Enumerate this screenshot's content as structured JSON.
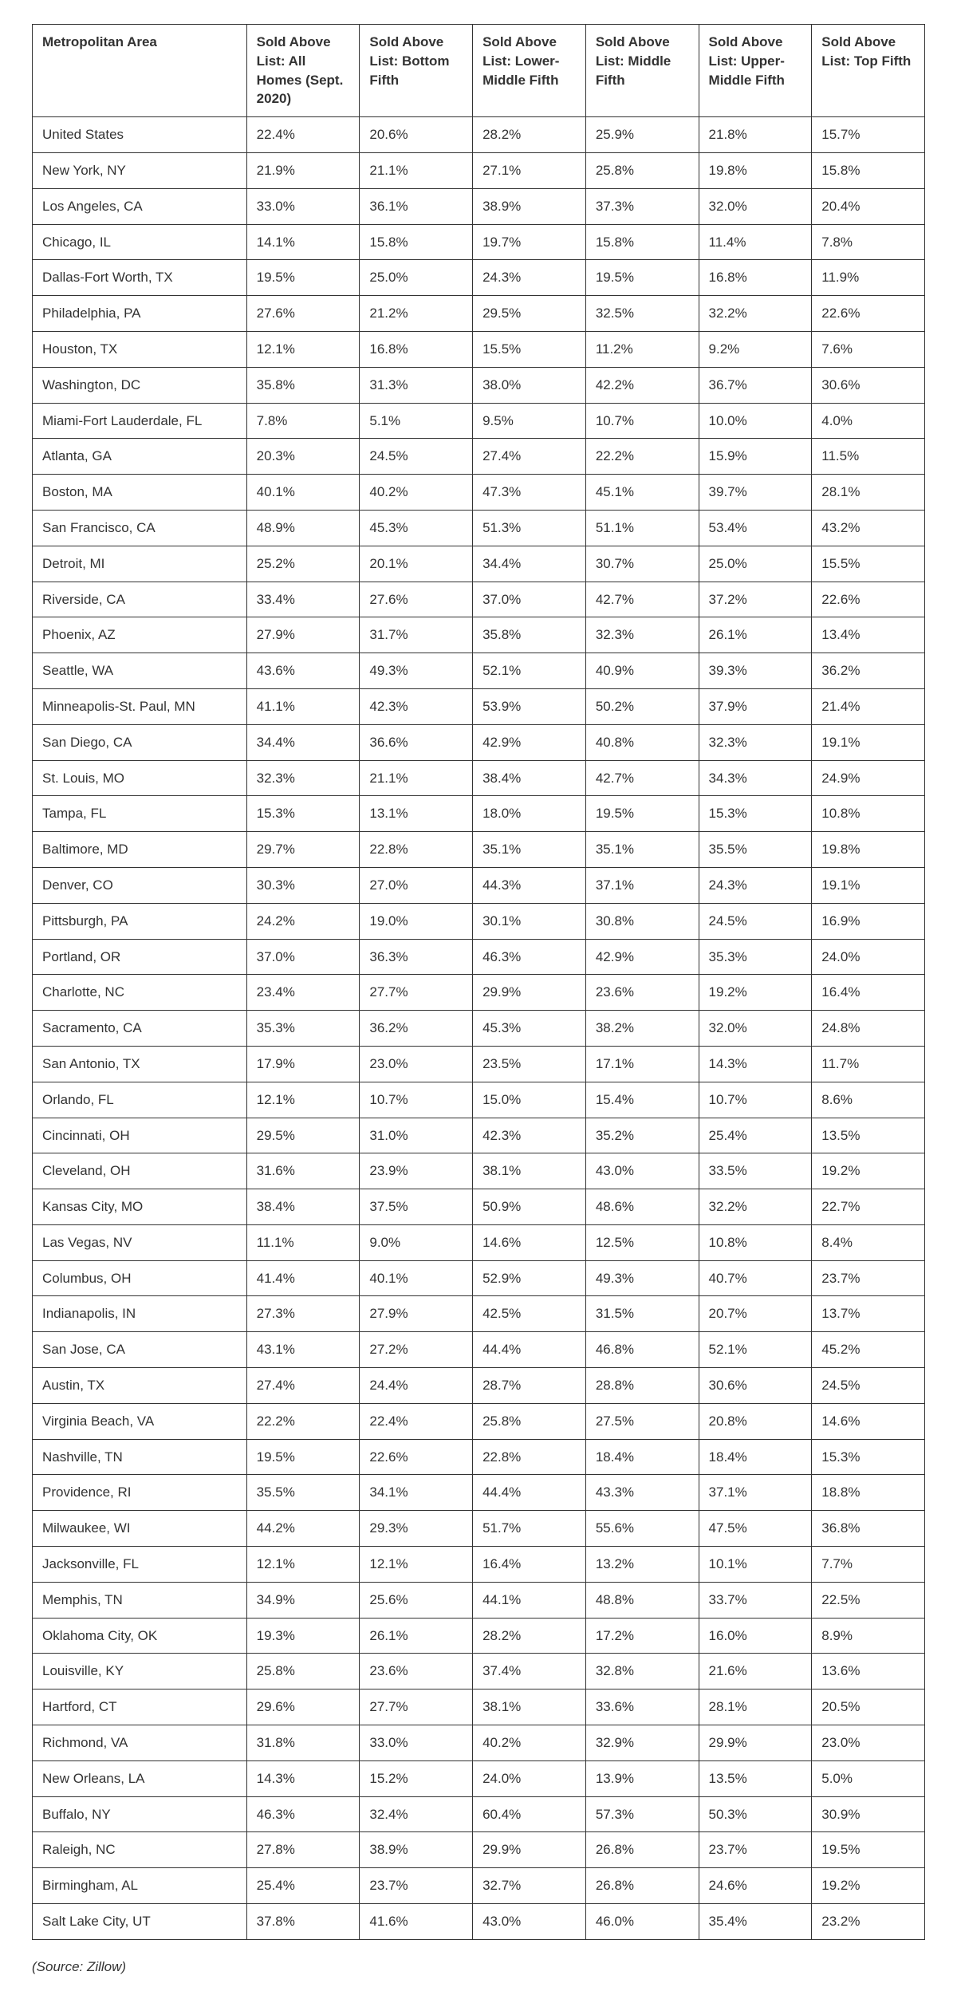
{
  "table": {
    "columns": [
      "Metropolitan Area",
      "Sold Above List: All Homes (Sept. 2020)",
      "Sold Above List: Bottom Fifth",
      "Sold Above List: Lower-Middle Fifth",
      "Sold Above List: Middle Fifth",
      "Sold Above List: Upper-Middle Fifth",
      "Sold Above List: Top Fifth"
    ],
    "rows": [
      [
        "United States",
        "22.4%",
        "20.6%",
        "28.2%",
        "25.9%",
        "21.8%",
        "15.7%"
      ],
      [
        "New York, NY",
        "21.9%",
        "21.1%",
        "27.1%",
        "25.8%",
        "19.8%",
        "15.8%"
      ],
      [
        "Los Angeles, CA",
        "33.0%",
        "36.1%",
        "38.9%",
        "37.3%",
        "32.0%",
        "20.4%"
      ],
      [
        "Chicago, IL",
        "14.1%",
        "15.8%",
        "19.7%",
        "15.8%",
        "11.4%",
        "7.8%"
      ],
      [
        "Dallas-Fort Worth, TX",
        "19.5%",
        "25.0%",
        "24.3%",
        "19.5%",
        "16.8%",
        "11.9%"
      ],
      [
        "Philadelphia, PA",
        "27.6%",
        "21.2%",
        "29.5%",
        "32.5%",
        "32.2%",
        "22.6%"
      ],
      [
        "Houston, TX",
        "12.1%",
        "16.8%",
        "15.5%",
        "11.2%",
        "9.2%",
        "7.6%"
      ],
      [
        "Washington, DC",
        "35.8%",
        "31.3%",
        "38.0%",
        "42.2%",
        "36.7%",
        "30.6%"
      ],
      [
        "Miami-Fort Lauderdale, FL",
        "7.8%",
        "5.1%",
        "9.5%",
        "10.7%",
        "10.0%",
        "4.0%"
      ],
      [
        "Atlanta, GA",
        "20.3%",
        "24.5%",
        "27.4%",
        "22.2%",
        "15.9%",
        "11.5%"
      ],
      [
        "Boston, MA",
        "40.1%",
        "40.2%",
        "47.3%",
        "45.1%",
        "39.7%",
        "28.1%"
      ],
      [
        "San Francisco, CA",
        "48.9%",
        "45.3%",
        "51.3%",
        "51.1%",
        "53.4%",
        "43.2%"
      ],
      [
        "Detroit, MI",
        "25.2%",
        "20.1%",
        "34.4%",
        "30.7%",
        "25.0%",
        "15.5%"
      ],
      [
        "Riverside, CA",
        "33.4%",
        "27.6%",
        "37.0%",
        "42.7%",
        "37.2%",
        "22.6%"
      ],
      [
        "Phoenix, AZ",
        "27.9%",
        "31.7%",
        "35.8%",
        "32.3%",
        "26.1%",
        "13.4%"
      ],
      [
        "Seattle, WA",
        "43.6%",
        "49.3%",
        "52.1%",
        "40.9%",
        "39.3%",
        "36.2%"
      ],
      [
        "Minneapolis-St. Paul, MN",
        "41.1%",
        "42.3%",
        "53.9%",
        "50.2%",
        "37.9%",
        "21.4%"
      ],
      [
        "San Diego, CA",
        "34.4%",
        "36.6%",
        "42.9%",
        "40.8%",
        "32.3%",
        "19.1%"
      ],
      [
        "St. Louis, MO",
        "32.3%",
        "21.1%",
        "38.4%",
        "42.7%",
        "34.3%",
        "24.9%"
      ],
      [
        "Tampa, FL",
        "15.3%",
        "13.1%",
        "18.0%",
        "19.5%",
        "15.3%",
        "10.8%"
      ],
      [
        "Baltimore, MD",
        "29.7%",
        "22.8%",
        "35.1%",
        "35.1%",
        "35.5%",
        "19.8%"
      ],
      [
        "Denver, CO",
        "30.3%",
        "27.0%",
        "44.3%",
        "37.1%",
        "24.3%",
        "19.1%"
      ],
      [
        "Pittsburgh, PA",
        "24.2%",
        "19.0%",
        "30.1%",
        "30.8%",
        "24.5%",
        "16.9%"
      ],
      [
        "Portland, OR",
        "37.0%",
        "36.3%",
        "46.3%",
        "42.9%",
        "35.3%",
        "24.0%"
      ],
      [
        "Charlotte, NC",
        "23.4%",
        "27.7%",
        "29.9%",
        "23.6%",
        "19.2%",
        "16.4%"
      ],
      [
        "Sacramento, CA",
        "35.3%",
        "36.2%",
        "45.3%",
        "38.2%",
        "32.0%",
        "24.8%"
      ],
      [
        "San Antonio, TX",
        "17.9%",
        "23.0%",
        "23.5%",
        "17.1%",
        "14.3%",
        "11.7%"
      ],
      [
        "Orlando, FL",
        "12.1%",
        "10.7%",
        "15.0%",
        "15.4%",
        "10.7%",
        "8.6%"
      ],
      [
        "Cincinnati, OH",
        "29.5%",
        "31.0%",
        "42.3%",
        "35.2%",
        "25.4%",
        "13.5%"
      ],
      [
        "Cleveland, OH",
        "31.6%",
        "23.9%",
        "38.1%",
        "43.0%",
        "33.5%",
        "19.2%"
      ],
      [
        "Kansas City, MO",
        "38.4%",
        "37.5%",
        "50.9%",
        "48.6%",
        "32.2%",
        "22.7%"
      ],
      [
        "Las Vegas, NV",
        "11.1%",
        "9.0%",
        "14.6%",
        "12.5%",
        "10.8%",
        "8.4%"
      ],
      [
        "Columbus, OH",
        "41.4%",
        "40.1%",
        "52.9%",
        "49.3%",
        "40.7%",
        "23.7%"
      ],
      [
        "Indianapolis, IN",
        "27.3%",
        "27.9%",
        "42.5%",
        "31.5%",
        "20.7%",
        "13.7%"
      ],
      [
        "San Jose, CA",
        "43.1%",
        "27.2%",
        "44.4%",
        "46.8%",
        "52.1%",
        "45.2%"
      ],
      [
        "Austin, TX",
        "27.4%",
        "24.4%",
        "28.7%",
        "28.8%",
        "30.6%",
        "24.5%"
      ],
      [
        "Virginia Beach, VA",
        "22.2%",
        "22.4%",
        "25.8%",
        "27.5%",
        "20.8%",
        "14.6%"
      ],
      [
        "Nashville, TN",
        "19.5%",
        "22.6%",
        "22.8%",
        "18.4%",
        "18.4%",
        "15.3%"
      ],
      [
        "Providence, RI",
        "35.5%",
        "34.1%",
        "44.4%",
        "43.3%",
        "37.1%",
        "18.8%"
      ],
      [
        "Milwaukee, WI",
        "44.2%",
        "29.3%",
        "51.7%",
        "55.6%",
        "47.5%",
        "36.8%"
      ],
      [
        "Jacksonville, FL",
        "12.1%",
        "12.1%",
        "16.4%",
        "13.2%",
        "10.1%",
        "7.7%"
      ],
      [
        "Memphis, TN",
        "34.9%",
        "25.6%",
        "44.1%",
        "48.8%",
        "33.7%",
        "22.5%"
      ],
      [
        "Oklahoma City, OK",
        "19.3%",
        "26.1%",
        "28.2%",
        "17.2%",
        "16.0%",
        "8.9%"
      ],
      [
        "Louisville, KY",
        "25.8%",
        "23.6%",
        "37.4%",
        "32.8%",
        "21.6%",
        "13.6%"
      ],
      [
        "Hartford, CT",
        "29.6%",
        "27.7%",
        "38.1%",
        "33.6%",
        "28.1%",
        "20.5%"
      ],
      [
        "Richmond, VA",
        "31.8%",
        "33.0%",
        "40.2%",
        "32.9%",
        "29.9%",
        "23.0%"
      ],
      [
        "New Orleans, LA",
        "14.3%",
        "15.2%",
        "24.0%",
        "13.9%",
        "13.5%",
        "5.0%"
      ],
      [
        "Buffalo, NY",
        "46.3%",
        "32.4%",
        "60.4%",
        "57.3%",
        "50.3%",
        "30.9%"
      ],
      [
        "Raleigh, NC",
        "27.8%",
        "38.9%",
        "29.9%",
        "26.8%",
        "23.7%",
        "19.5%"
      ],
      [
        "Birmingham, AL",
        "25.4%",
        "23.7%",
        "32.7%",
        "26.8%",
        "24.6%",
        "19.2%"
      ],
      [
        "Salt Lake City, UT",
        "37.8%",
        "41.6%",
        "43.0%",
        "46.0%",
        "35.4%",
        "23.2%"
      ]
    ]
  },
  "source": "(Source: Zillow)"
}
